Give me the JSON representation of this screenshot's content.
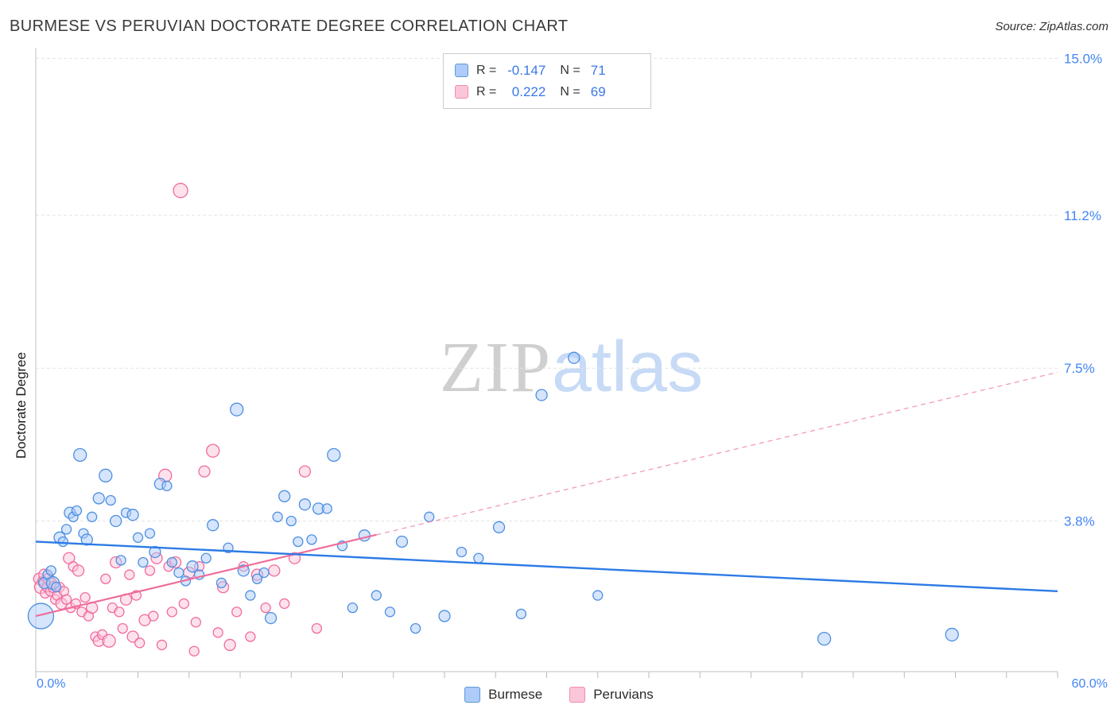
{
  "header": {
    "title": "BURMESE VS PERUVIAN DOCTORATE DEGREE CORRELATION CHART",
    "source": "Source: ZipAtlas.com"
  },
  "stats_legend": {
    "rows": [
      {
        "series": "Burmese",
        "r_label": "R =",
        "r_value": "-0.147",
        "n_label": "N =",
        "n_value": "71",
        "swatch_fill": "#aecbfa",
        "swatch_stroke": "#5b9bd5"
      },
      {
        "series": "Peruvians",
        "r_label": "R =",
        "r_value": "0.222",
        "n_label": "N =",
        "n_value": "69",
        "swatch_fill": "#fbc6d9",
        "swatch_stroke": "#f08cb4"
      }
    ]
  },
  "axes": {
    "y_label": "Doctorate Degree",
    "x_min_label": "0.0%",
    "x_max_label": "60.0%"
  },
  "watermark": {
    "part1": "ZIP",
    "part2": "atlas"
  },
  "bottom_legend": {
    "items": [
      {
        "label": "Burmese",
        "swatch_fill": "#aecbfa",
        "swatch_stroke": "#5b9bd5"
      },
      {
        "label": "Peruvians",
        "swatch_fill": "#fbc6d9",
        "swatch_stroke": "#f08cb4"
      }
    ]
  },
  "chart_data": {
    "type": "scatter",
    "title": "BURMESE VS PERUVIAN DOCTORATE DEGREE CORRELATION CHART",
    "xlabel": "",
    "ylabel": "Doctorate Degree",
    "xlim": [
      0,
      60
    ],
    "ylim": [
      0,
      15.2
    ],
    "x_tick_step": 3,
    "grid": true,
    "legend_position": "bottom",
    "y_ticks": [
      {
        "value": 15.0,
        "label": "15.0%"
      },
      {
        "value": 11.2,
        "label": "11.2%"
      },
      {
        "value": 7.5,
        "label": "7.5%"
      },
      {
        "value": 3.8,
        "label": "3.8%"
      }
    ],
    "series": [
      {
        "name": "Peruvians",
        "color_fill": "#fbc6d9",
        "color_stroke": "#f06ba0",
        "points": [
          [
            0.2,
            2.4,
            7
          ],
          [
            0.3,
            2.2,
            8
          ],
          [
            0.4,
            2.35,
            6
          ],
          [
            0.5,
            2.5,
            7
          ],
          [
            0.55,
            2.05,
            6
          ],
          [
            0.65,
            2.2,
            6
          ],
          [
            0.75,
            2.4,
            7
          ],
          [
            0.85,
            2.1,
            6
          ],
          [
            0.95,
            2.3,
            6
          ],
          [
            1.05,
            2.2,
            7
          ],
          [
            1.15,
            1.9,
            6
          ],
          [
            1.25,
            2.0,
            6
          ],
          [
            1.4,
            2.2,
            6
          ],
          [
            1.5,
            1.8,
            7
          ],
          [
            1.65,
            2.1,
            6
          ],
          [
            1.8,
            1.9,
            6
          ],
          [
            1.95,
            2.9,
            7
          ],
          [
            2.05,
            1.7,
            6
          ],
          [
            2.2,
            2.7,
            6
          ],
          [
            2.35,
            1.8,
            6
          ],
          [
            2.5,
            2.6,
            7
          ],
          [
            2.7,
            1.6,
            6
          ],
          [
            2.9,
            1.95,
            6
          ],
          [
            3.1,
            1.5,
            6
          ],
          [
            3.3,
            1.7,
            7
          ],
          [
            3.5,
            1.0,
            6
          ],
          [
            3.7,
            0.9,
            7
          ],
          [
            3.9,
            1.05,
            6
          ],
          [
            4.1,
            2.4,
            6
          ],
          [
            4.3,
            0.9,
            8
          ],
          [
            4.5,
            1.7,
            6
          ],
          [
            4.7,
            2.8,
            7
          ],
          [
            4.9,
            1.6,
            6
          ],
          [
            5.1,
            1.2,
            6
          ],
          [
            5.3,
            1.9,
            7
          ],
          [
            5.5,
            2.5,
            6
          ],
          [
            5.7,
            1.0,
            7
          ],
          [
            5.9,
            2.0,
            6
          ],
          [
            6.1,
            0.85,
            6
          ],
          [
            6.4,
            1.4,
            7
          ],
          [
            6.7,
            2.6,
            6
          ],
          [
            6.9,
            1.5,
            6
          ],
          [
            7.1,
            2.9,
            7
          ],
          [
            7.4,
            0.8,
            6
          ],
          [
            7.6,
            4.9,
            8
          ],
          [
            7.8,
            2.7,
            6
          ],
          [
            8.0,
            1.6,
            6
          ],
          [
            8.2,
            2.8,
            7
          ],
          [
            8.5,
            11.8,
            9
          ],
          [
            8.7,
            1.8,
            6
          ],
          [
            9.0,
            2.55,
            7
          ],
          [
            9.3,
            0.65,
            6
          ],
          [
            9.6,
            2.7,
            6
          ],
          [
            9.9,
            5.0,
            7
          ],
          [
            10.4,
            5.5,
            8
          ],
          [
            10.7,
            1.1,
            6
          ],
          [
            11.0,
            2.2,
            7
          ],
          [
            11.4,
            0.8,
            7
          ],
          [
            11.8,
            1.6,
            6
          ],
          [
            12.2,
            2.7,
            6
          ],
          [
            12.6,
            1.0,
            6
          ],
          [
            13.0,
            2.5,
            7
          ],
          [
            13.5,
            1.7,
            6
          ],
          [
            14.0,
            2.6,
            7
          ],
          [
            14.6,
            1.8,
            6
          ],
          [
            15.2,
            2.9,
            7
          ],
          [
            15.8,
            5.0,
            7
          ],
          [
            16.5,
            1.2,
            6
          ],
          [
            9.4,
            1.35,
            6
          ]
        ]
      },
      {
        "name": "Burmese",
        "color_fill": "#aecbfa",
        "color_stroke": "#4d8fe0",
        "points": [
          [
            0.3,
            1.5,
            16
          ],
          [
            0.5,
            2.3,
            7
          ],
          [
            0.7,
            2.5,
            6
          ],
          [
            0.9,
            2.6,
            6
          ],
          [
            1.0,
            2.3,
            8
          ],
          [
            1.2,
            2.2,
            6
          ],
          [
            1.4,
            3.4,
            7
          ],
          [
            1.6,
            3.3,
            6
          ],
          [
            1.8,
            3.6,
            6
          ],
          [
            2.0,
            4.0,
            7
          ],
          [
            2.2,
            3.9,
            6
          ],
          [
            2.4,
            4.05,
            6
          ],
          [
            2.6,
            5.4,
            8
          ],
          [
            2.8,
            3.5,
            6
          ],
          [
            3.0,
            3.35,
            7
          ],
          [
            3.3,
            3.9,
            6
          ],
          [
            3.7,
            4.35,
            7
          ],
          [
            4.1,
            4.9,
            8
          ],
          [
            4.4,
            4.3,
            6
          ],
          [
            4.7,
            3.8,
            7
          ],
          [
            5.0,
            2.85,
            6
          ],
          [
            5.3,
            4.0,
            6
          ],
          [
            5.7,
            3.95,
            7
          ],
          [
            6.0,
            3.4,
            6
          ],
          [
            6.3,
            2.8,
            6
          ],
          [
            6.7,
            3.5,
            6
          ],
          [
            7.0,
            3.05,
            7
          ],
          [
            7.3,
            4.7,
            7
          ],
          [
            7.7,
            4.65,
            6
          ],
          [
            8.0,
            2.8,
            6
          ],
          [
            8.4,
            2.55,
            6
          ],
          [
            8.8,
            2.35,
            6
          ],
          [
            9.2,
            2.7,
            7
          ],
          [
            9.6,
            2.5,
            6
          ],
          [
            10.0,
            2.9,
            6
          ],
          [
            10.4,
            3.7,
            7
          ],
          [
            10.9,
            2.3,
            6
          ],
          [
            11.3,
            3.15,
            6
          ],
          [
            11.8,
            6.5,
            8
          ],
          [
            12.2,
            2.6,
            7
          ],
          [
            12.6,
            2.0,
            6
          ],
          [
            13.0,
            2.4,
            6
          ],
          [
            13.4,
            2.55,
            6
          ],
          [
            13.8,
            1.45,
            7
          ],
          [
            14.2,
            3.9,
            6
          ],
          [
            14.6,
            4.4,
            7
          ],
          [
            15.0,
            3.8,
            6
          ],
          [
            15.4,
            3.3,
            6
          ],
          [
            15.8,
            4.2,
            7
          ],
          [
            16.2,
            3.35,
            6
          ],
          [
            16.6,
            4.1,
            7
          ],
          [
            17.1,
            4.1,
            6
          ],
          [
            17.5,
            5.4,
            8
          ],
          [
            18.0,
            3.2,
            6
          ],
          [
            18.6,
            1.7,
            6
          ],
          [
            19.3,
            3.45,
            7
          ],
          [
            20.0,
            2.0,
            6
          ],
          [
            20.8,
            1.6,
            6
          ],
          [
            21.5,
            3.3,
            7
          ],
          [
            22.3,
            1.2,
            6
          ],
          [
            23.1,
            3.9,
            6
          ],
          [
            24.0,
            1.5,
            7
          ],
          [
            25.0,
            3.05,
            6
          ],
          [
            26.0,
            2.9,
            6
          ],
          [
            27.2,
            3.65,
            7
          ],
          [
            28.5,
            1.55,
            6
          ],
          [
            29.7,
            6.85,
            7
          ],
          [
            31.6,
            7.75,
            7
          ],
          [
            33.0,
            2.0,
            6
          ],
          [
            46.3,
            0.95,
            8
          ],
          [
            53.8,
            1.05,
            8
          ]
        ]
      }
    ],
    "trend_lines": [
      {
        "name": "Peruvians",
        "color": "#ee6d9b",
        "dash_color": "#f29ab9",
        "width": 2.2,
        "x1": 0,
        "y1": 1.5,
        "x2": 60,
        "y2": 7.4,
        "dash_from": 20
      },
      {
        "name": "Burmese",
        "color": "#2d7be5",
        "dash_color": null,
        "width": 2.4,
        "x1": 0,
        "y1": 3.3,
        "x2": 60,
        "y2": 2.1,
        "dash_from": null
      }
    ],
    "correlations": [
      {
        "name": "Burmese",
        "R": -0.147,
        "N": 71
      },
      {
        "name": "Peruvians",
        "R": 0.222,
        "N": 69
      }
    ]
  }
}
